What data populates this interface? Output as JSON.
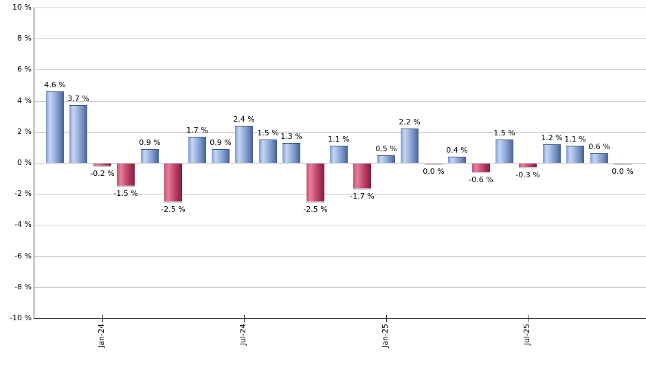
{
  "chart_data": {
    "type": "bar",
    "title": "",
    "xlabel": "",
    "ylabel": "",
    "unit": "%",
    "ylim": [
      -10,
      10
    ],
    "y_tick_step": 2,
    "grid": true,
    "legend": "none",
    "y_tick_labels": [
      "10 %",
      "8 %",
      "6 %",
      "4 %",
      "2 %",
      "0 %",
      "-2 %",
      "-4 %",
      "-6 %",
      "-8 %",
      "-10 %"
    ],
    "x_ticks": [
      {
        "label": "Jan-24",
        "bar_index": 2
      },
      {
        "label": "Jul-24",
        "bar_index": 8
      },
      {
        "label": "Jan-25",
        "bar_index": 14
      },
      {
        "label": "Jul-25",
        "bar_index": 20
      }
    ],
    "bars": [
      {
        "value": 4.6,
        "label": "4.6 %",
        "color": "positive"
      },
      {
        "value": 3.7,
        "label": "3.7 %",
        "color": "positive"
      },
      {
        "value": -0.2,
        "label": "-0.2 %",
        "color": "negative"
      },
      {
        "value": -1.5,
        "label": "-1.5 %",
        "color": "negative"
      },
      {
        "value": 0.9,
        "label": "0.9 %",
        "color": "positive"
      },
      {
        "value": -2.5,
        "label": "-2.5 %",
        "color": "negative"
      },
      {
        "value": 1.7,
        "label": "1.7 %",
        "color": "positive"
      },
      {
        "value": 0.9,
        "label": "0.9 %",
        "color": "positive"
      },
      {
        "value": 2.4,
        "label": "2.4 %",
        "color": "positive"
      },
      {
        "value": 1.5,
        "label": "1.5 %",
        "color": "positive"
      },
      {
        "value": 1.3,
        "label": "1.3 %",
        "color": "positive"
      },
      {
        "value": -2.5,
        "label": "-2.5 %",
        "color": "negative"
      },
      {
        "value": 1.1,
        "label": "1.1 %",
        "color": "positive"
      },
      {
        "value": -1.7,
        "label": "-1.7 %",
        "color": "negative"
      },
      {
        "value": 0.5,
        "label": "0.5 %",
        "color": "positive"
      },
      {
        "value": 2.2,
        "label": "2.2 %",
        "color": "positive"
      },
      {
        "value": 0.0,
        "label": "0.0 %",
        "color": "negative"
      },
      {
        "value": 0.4,
        "label": "0.4 %",
        "color": "positive"
      },
      {
        "value": -0.6,
        "label": "-0.6 %",
        "color": "negative"
      },
      {
        "value": 1.5,
        "label": "1.5 %",
        "color": "positive"
      },
      {
        "value": -0.3,
        "label": "-0.3 %",
        "color": "negative"
      },
      {
        "value": 1.2,
        "label": "1.2 %",
        "color": "positive"
      },
      {
        "value": 1.1,
        "label": "1.1 %",
        "color": "positive"
      },
      {
        "value": 0.6,
        "label": "0.6 %",
        "color": "positive"
      },
      {
        "value": 0.0,
        "label": "0.0 %",
        "color": "negative"
      }
    ],
    "colors": {
      "background": "#ffffff",
      "gridline": "#c8c8c8",
      "axis": "#333333",
      "label_text": "#000000",
      "positive_gradient": [
        "#7f9cd0",
        "#c6d6f3",
        "#9db5e0",
        "#7590c2",
        "#47618f"
      ],
      "negative_gradient": [
        "#c74f72",
        "#e87f9c",
        "#c4496e",
        "#a23054",
        "#8c1c3e"
      ],
      "positive_cap": "#3a5580",
      "negative_cap": "#cccccc"
    }
  }
}
